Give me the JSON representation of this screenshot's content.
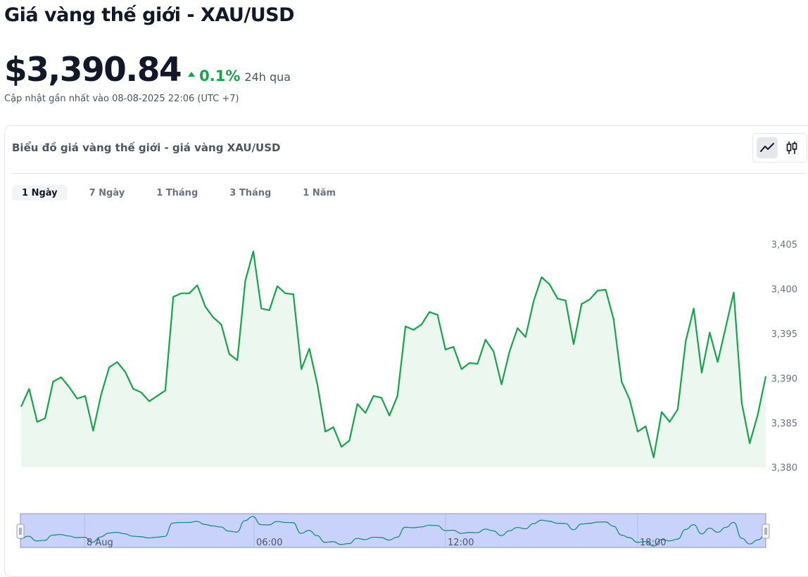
{
  "header": {
    "title": "Giá vàng thế giới - XAU/USD",
    "price": "$3,390.84",
    "change_pct": "0.1%",
    "change_period": "24h qua",
    "updated": "Cập nhật gần nhất vào 08-08-2025 22:06 (UTC +7)"
  },
  "chart_card": {
    "title": "Biểu đồ giá vàng thế giới - giá vàng XAU/USD",
    "chart_types": [
      "line-chart-icon",
      "candlestick-icon"
    ],
    "active_chart_type": "line",
    "tabs": [
      {
        "label": "1 Ngày",
        "active": true
      },
      {
        "label": "7 Ngày",
        "active": false
      },
      {
        "label": "1 Tháng",
        "active": false
      },
      {
        "label": "3 Tháng",
        "active": false
      },
      {
        "label": "1 Năm",
        "active": false
      }
    ]
  },
  "colors": {
    "line": "#16a34a",
    "area_fill": "#ecf7f0",
    "navigator_fill": "#c9d2fb",
    "navigator_border": "#8a93c7",
    "accent_up": "#16a34a"
  },
  "chart_data": {
    "type": "area",
    "title": "",
    "xlabel": "",
    "ylabel": "",
    "ylim": [
      3379.7,
      3406.5
    ],
    "y_ticks": [
      "3,380",
      "3,385",
      "3,390",
      "3,395",
      "3,400",
      "3,405"
    ],
    "y_tick_values": [
      3380,
      3385,
      3390,
      3395,
      3400,
      3405
    ],
    "navigator_labels": [
      "8 Aug",
      "06:00",
      "12:00",
      "18:00"
    ],
    "series": [
      {
        "values": [
          3386.8,
          3388.8,
          3385.1,
          3385.5,
          3389.6,
          3390.1,
          3389.0,
          3387.7,
          3388.0,
          3384.1,
          3388.2,
          3391.2,
          3391.8,
          3390.7,
          3388.8,
          3388.4,
          3387.4,
          3388.0,
          3388.6,
          3399.1,
          3399.5,
          3399.5,
          3400.4,
          3398.0,
          3396.8,
          3396.0,
          3392.7,
          3392.0,
          3400.9,
          3404.2,
          3397.8,
          3397.6,
          3400.3,
          3399.5,
          3399.4,
          3391.0,
          3393.3,
          3389.3,
          3384.0,
          3384.5,
          3382.3,
          3383.0,
          3387.1,
          3386.1,
          3388.0,
          3387.8,
          3385.8,
          3388.0,
          3395.8,
          3395.4,
          3396.0,
          3397.4,
          3397.1,
          3393.2,
          3393.5,
          3391.0,
          3391.7,
          3391.6,
          3394.3,
          3393.0,
          3389.3,
          3393.0,
          3395.6,
          3394.6,
          3398.6,
          3401.3,
          3400.5,
          3398.9,
          3398.7,
          3393.8,
          3398.3,
          3398.8,
          3399.8,
          3399.9,
          3396.6,
          3389.6,
          3387.6,
          3384.0,
          3384.6,
          3381.1,
          3386.2,
          3385.1,
          3386.5,
          3394.1,
          3397.8,
          3390.6,
          3395.1,
          3391.8,
          3395.7,
          3399.6,
          3387.2,
          3382.7,
          3385.9,
          3390.2
        ]
      }
    ]
  }
}
